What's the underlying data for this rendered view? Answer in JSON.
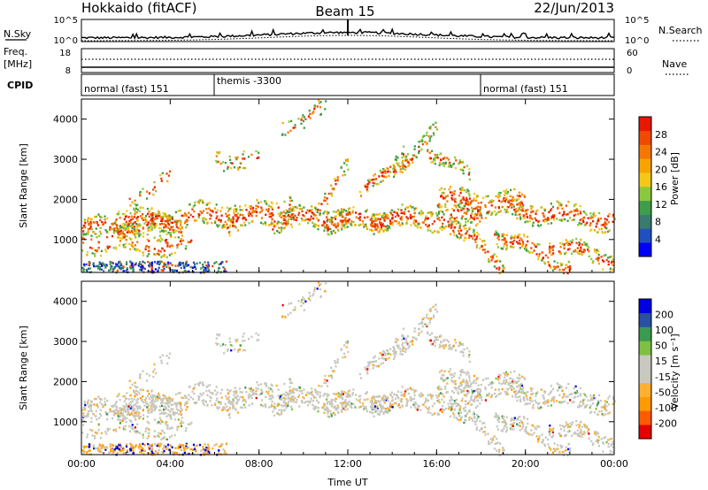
{
  "header": {
    "title": "Hokkaido (fitACF)",
    "beam": "Beam 15",
    "date": "22/Jun/2013"
  },
  "noise_panel": {
    "left_label": "N.Sky",
    "right_label": "N.Search",
    "y_ticks": [
      "10^5",
      "10^0"
    ],
    "right_ticks": [
      "10^5",
      "10^0"
    ]
  },
  "freq_panel": {
    "left_label_1": "Freq.",
    "left_label_2": "[MHz]",
    "left_ticks": [
      "18",
      "8"
    ],
    "right_label": "Nave",
    "right_ticks": [
      "60",
      "0"
    ]
  },
  "cpid": {
    "label": "CPID",
    "segments": [
      {
        "name": "normal (fast) 151",
        "start": 0
      },
      {
        "name": "themis -3300",
        "start": 6
      },
      {
        "name": "normal (fast) 151",
        "start": 18
      }
    ]
  },
  "colors": {
    "power": [
      "#0000ff",
      "#2050c0",
      "#3a7a70",
      "#3f9c4a",
      "#8cc83c",
      "#f4c818",
      "#f8a400",
      "#f47800",
      "#ef4a00",
      "#e81800"
    ],
    "velocity": [
      "#e60000",
      "#ff5a00",
      "#ff9a00",
      "#ffb030",
      "#c8c8c0",
      "#c8c8c0",
      "#80c040",
      "#3a9a50",
      "#2a50a0",
      "#0000e0"
    ]
  },
  "chart_data": [
    {
      "type": "heatmap",
      "name": "power",
      "ylabel": "Slant Range [km]",
      "x_ticks": [
        "00:00",
        "04:00",
        "08:00",
        "12:00",
        "16:00",
        "20:00",
        "00:00"
      ],
      "x_range_hours": [
        0,
        24
      ],
      "y_ticks": [
        1000,
        2000,
        3000,
        4000
      ],
      "y_range_km": [
        180,
        4500
      ],
      "colorbar_label": "Power [dB]",
      "colorbar_ticks": [
        "28",
        "24",
        "20",
        "16",
        "12",
        "8",
        "4"
      ],
      "colorbar_range": [
        0,
        32
      ]
    },
    {
      "type": "heatmap",
      "name": "velocity",
      "xlabel": "Time UT",
      "ylabel": "Slant Range [km]",
      "x_ticks": [
        "00:00",
        "04:00",
        "08:00",
        "12:00",
        "16:00",
        "20:00",
        "00:00"
      ],
      "x_range_hours": [
        0,
        24
      ],
      "y_ticks": [
        1000,
        2000,
        3000,
        4000
      ],
      "y_range_km": [
        180,
        4500
      ],
      "colorbar_label": "Velocity [m s⁻¹]",
      "colorbar_ticks": [
        "200",
        "100",
        "50",
        "15",
        "-15",
        "-50",
        "-100",
        "-200"
      ],
      "colorbar_range": [
        -250,
        250
      ]
    }
  ]
}
